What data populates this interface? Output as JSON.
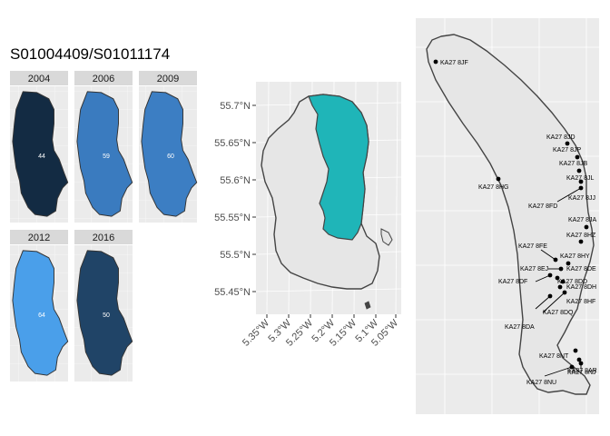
{
  "title": "S01004409/S01011174",
  "facets": [
    {
      "year": "2004",
      "value": "44",
      "fill": "#132B43"
    },
    {
      "year": "2006",
      "value": "59",
      "fill": "#3A7BBF"
    },
    {
      "year": "2009",
      "value": "60",
      "fill": "#3C7EC3"
    },
    {
      "year": "2012",
      "value": "64",
      "fill": "#4A9FEA"
    },
    {
      "year": "2016",
      "value": "50",
      "fill": "#204467"
    }
  ],
  "locator_map": {
    "y_ticks": [
      "55.7°N",
      "55.65°N",
      "55.6°N",
      "55.55°N",
      "55.5°N",
      "55.45°N"
    ],
    "x_ticks": [
      "5.35°W",
      "5.3°W",
      "5.25°W",
      "5.2°W",
      "5.15°W",
      "5.1°W",
      "5.05°W"
    ],
    "land_fill": "#e6e6e6",
    "highlight_fill": "#1FB5B8"
  },
  "postcodes": [
    {
      "label": "KA27 8JF"
    },
    {
      "label": "KA27 8HG"
    },
    {
      "label": "KA27 8JD"
    },
    {
      "label": "KA27 8JP"
    },
    {
      "label": "KA27 8JB"
    },
    {
      "label": "KA27 8JL"
    },
    {
      "label": "KA27 8FD"
    },
    {
      "label": "KA27 8JJ"
    },
    {
      "label": "KA27 8JA"
    },
    {
      "label": "KA27 8HZ"
    },
    {
      "label": "KA27 8FE"
    },
    {
      "label": "KA27 8HY"
    },
    {
      "label": "KA27 8EJ"
    },
    {
      "label": "KA27 8DE"
    },
    {
      "label": "KA27 8DF"
    },
    {
      "label": "KA27 8DD"
    },
    {
      "label": "KA27 8DH"
    },
    {
      "label": "KA27 8DQ"
    },
    {
      "label": "KA27 8HF"
    },
    {
      "label": "KA27 8DA"
    },
    {
      "label": "KA27 8NT"
    },
    {
      "label": "KA27 8AR"
    },
    {
      "label": "KA27 8NJ"
    },
    {
      "label": "KA27 8NU"
    }
  ]
}
